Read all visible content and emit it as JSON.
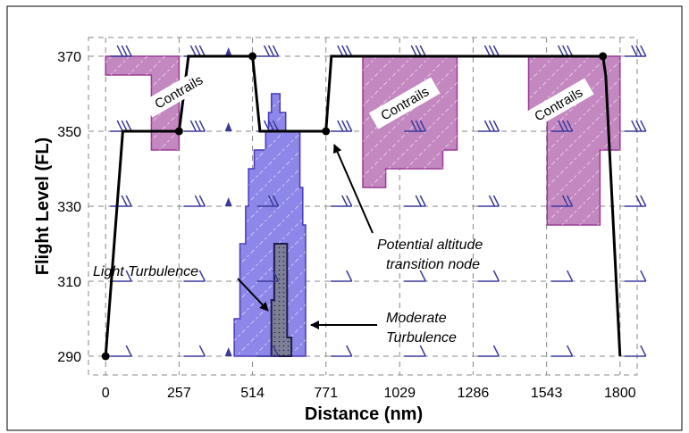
{
  "chart_data": {
    "type": "line",
    "xlabel": "Distance (nm)",
    "ylabel": "Flight Level (FL)",
    "xticks": [
      "0",
      "257",
      "514",
      "771",
      "1029",
      "1286",
      "1543",
      "1800"
    ],
    "yticks": [
      "290",
      "310",
      "330",
      "350",
      "370"
    ],
    "xlim": [
      -60,
      1860
    ],
    "ylim": [
      285,
      375
    ],
    "grid": true,
    "tick_values_x": [
      0,
      257,
      514,
      771,
      1029,
      1286,
      1543,
      1800
    ],
    "tick_values_y": [
      290,
      310,
      330,
      350,
      370
    ],
    "route": {
      "x": [
        0,
        60,
        257,
        290,
        514,
        540,
        771,
        790,
        1740,
        1750,
        1800
      ],
      "y": [
        290,
        350,
        350,
        370,
        370,
        350,
        350,
        370,
        370,
        365,
        290
      ]
    },
    "nodes": {
      "x": [
        0,
        257,
        514,
        771,
        1740
      ],
      "y": [
        290,
        350,
        370,
        350,
        370
      ]
    },
    "regions": {
      "contrails": [
        [
          [
            0,
            370
          ],
          [
            257,
            370
          ],
          [
            257,
            345
          ],
          [
            160,
            345
          ],
          [
            160,
            365
          ],
          [
            0,
            365
          ]
        ],
        [
          [
            900,
            370
          ],
          [
            1230,
            370
          ],
          [
            1230,
            345
          ],
          [
            1180,
            345
          ],
          [
            1180,
            340
          ],
          [
            980,
            340
          ],
          [
            980,
            335
          ],
          [
            900,
            335
          ]
        ],
        [
          [
            1480,
            370
          ],
          [
            1800,
            370
          ],
          [
            1800,
            345
          ],
          [
            1730,
            345
          ],
          [
            1730,
            325
          ],
          [
            1545,
            325
          ],
          [
            1545,
            355
          ],
          [
            1480,
            355
          ]
        ]
      ],
      "light_turbulence": [
        [
          [
            580,
            360
          ],
          [
            610,
            360
          ],
          [
            610,
            355
          ],
          [
            630,
            355
          ],
          [
            630,
            350
          ],
          [
            680,
            350
          ],
          [
            680,
            335
          ],
          [
            690,
            335
          ],
          [
            690,
            325
          ],
          [
            700,
            325
          ],
          [
            700,
            290
          ],
          [
            450,
            290
          ],
          [
            450,
            300
          ],
          [
            470,
            300
          ],
          [
            470,
            320
          ],
          [
            490,
            320
          ],
          [
            490,
            330
          ],
          [
            500,
            330
          ],
          [
            500,
            340
          ],
          [
            520,
            340
          ],
          [
            520,
            345
          ],
          [
            560,
            345
          ],
          [
            560,
            350
          ],
          [
            570,
            350
          ],
          [
            570,
            355
          ],
          [
            580,
            355
          ]
        ]
      ],
      "moderate_turbulence": [
        [
          [
            580,
            305
          ],
          [
            590,
            305
          ],
          [
            590,
            320
          ],
          [
            635,
            320
          ],
          [
            635,
            295
          ],
          [
            650,
            295
          ],
          [
            650,
            290
          ],
          [
            580,
            290
          ]
        ]
      ]
    },
    "colors": {
      "route": "#000000",
      "contrails_fill": "#c488c0",
      "contrails_stroke": "#9a3a94",
      "light_turbulence_fill": "#8c87e8",
      "light_turbulence_stroke": "#4a3ab8",
      "moderate_turbulence_fill": "#7d7f96",
      "moderate_turbulence_stroke": "#1e1a4e",
      "wind_barb": "#3b3a9a",
      "grid": "#888888"
    },
    "annotations": {
      "contrails_1": "Contrails",
      "contrails_2": "Contrails",
      "contrails_3": "Contrails",
      "light_turbulence": "Light Turbulence",
      "moderate_turbulence_line1": "Moderate",
      "moderate_turbulence_line2": "Turbulence",
      "transition_line1": "Potential altitude",
      "transition_line2": "transition node"
    }
  }
}
